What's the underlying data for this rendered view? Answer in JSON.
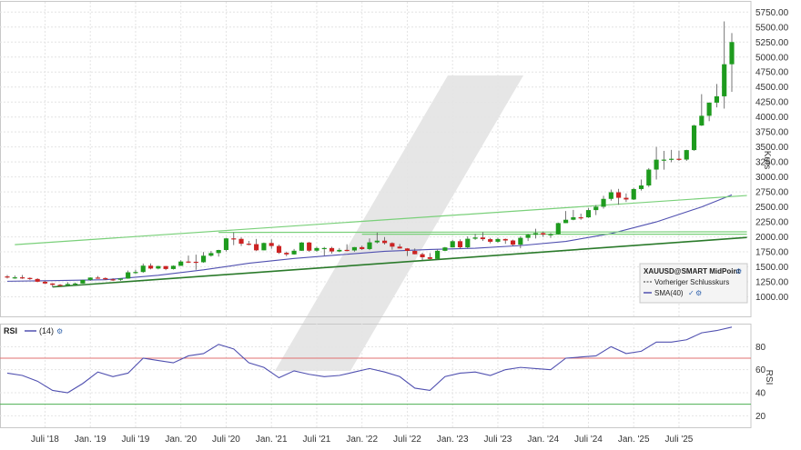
{
  "chart_data": [
    {
      "type": "candlestick",
      "panel": "price",
      "ylabel": "Kurs",
      "ylim": [
        750,
        5800
      ],
      "yticks": [
        1000,
        1250,
        1500,
        1750,
        2000,
        2250,
        2500,
        2750,
        3000,
        3250,
        3500,
        3750,
        4000,
        4250,
        4500,
        4750,
        5000,
        5250,
        5500,
        5750
      ],
      "ytick_labels": [
        "1000.00",
        "1250.00",
        "1500.00",
        "1750.00",
        "2000.00",
        "2250.00",
        "2500.00",
        "2750.00",
        "3000.00",
        "3250.00",
        "3500.00",
        "3750.00",
        "4000.00",
        "4250.00",
        "4500.00",
        "4750.00",
        "5000.00",
        "5250.00",
        "5500.00",
        "5750.00"
      ],
      "xlim": [
        "2018-02",
        "2026-02"
      ],
      "xticks": [
        "2018-07",
        "2019-01",
        "2019-07",
        "2020-01",
        "2020-07",
        "2021-01",
        "2021-07",
        "2022-01",
        "2022-07",
        "2023-01",
        "2023-07",
        "2024-01",
        "2024-07",
        "2025-01",
        "2025-07"
      ],
      "xtick_labels": [
        "Juli '18",
        "Jan. '19",
        "Juli '19",
        "Jan. '20",
        "Juli '20",
        "Jan. '21",
        "Juli '21",
        "Jan. '22",
        "Juli '22",
        "Jan. '23",
        "Juli '23",
        "Jan. '24",
        "Juli '24",
        "Jan. '25",
        "Juli '25"
      ],
      "grid": true,
      "colors": {
        "up": "#1e9b1e",
        "down": "#cc2222",
        "sma": "#5050b0",
        "trend_dark": "#2a7a2a",
        "trend_light": "#7ad07a"
      },
      "legend": {
        "position": "bottom-right",
        "title": "XAUUSD@SMART MidPoint",
        "entries": [
          "Vorheriger Schlusskurs",
          "SMA(40)"
        ]
      },
      "candles": [
        {
          "t": "2018-02",
          "o": 1340,
          "h": 1365,
          "l": 1305,
          "c": 1322
        },
        {
          "t": "2018-03",
          "o": 1322,
          "h": 1355,
          "l": 1300,
          "c": 1325
        },
        {
          "t": "2018-04",
          "o": 1325,
          "h": 1365,
          "l": 1300,
          "c": 1315
        },
        {
          "t": "2018-05",
          "o": 1315,
          "h": 1325,
          "l": 1282,
          "c": 1298
        },
        {
          "t": "2018-06",
          "o": 1298,
          "h": 1310,
          "l": 1245,
          "c": 1252
        },
        {
          "t": "2018-07",
          "o": 1252,
          "h": 1268,
          "l": 1212,
          "c": 1223
        },
        {
          "t": "2018-08",
          "o": 1223,
          "h": 1228,
          "l": 1160,
          "c": 1200
        },
        {
          "t": "2018-09",
          "o": 1200,
          "h": 1212,
          "l": 1180,
          "c": 1192
        },
        {
          "t": "2018-10",
          "o": 1192,
          "h": 1245,
          "l": 1182,
          "c": 1214
        },
        {
          "t": "2018-11",
          "o": 1214,
          "h": 1238,
          "l": 1196,
          "c": 1222
        },
        {
          "t": "2018-12",
          "o": 1222,
          "h": 1285,
          "l": 1221,
          "c": 1282
        },
        {
          "t": "2019-01",
          "o": 1282,
          "h": 1326,
          "l": 1266,
          "c": 1321
        },
        {
          "t": "2019-02",
          "o": 1321,
          "h": 1347,
          "l": 1302,
          "c": 1313
        },
        {
          "t": "2019-03",
          "o": 1313,
          "h": 1324,
          "l": 1281,
          "c": 1292
        },
        {
          "t": "2019-04",
          "o": 1292,
          "h": 1310,
          "l": 1266,
          "c": 1284
        },
        {
          "t": "2019-05",
          "o": 1284,
          "h": 1306,
          "l": 1267,
          "c": 1305
        },
        {
          "t": "2019-06",
          "o": 1305,
          "h": 1439,
          "l": 1301,
          "c": 1409
        },
        {
          "t": "2019-07",
          "o": 1409,
          "h": 1453,
          "l": 1382,
          "c": 1414
        },
        {
          "t": "2019-08",
          "o": 1414,
          "h": 1555,
          "l": 1400,
          "c": 1520
        },
        {
          "t": "2019-09",
          "o": 1520,
          "h": 1557,
          "l": 1459,
          "c": 1472
        },
        {
          "t": "2019-10",
          "o": 1472,
          "h": 1518,
          "l": 1459,
          "c": 1513
        },
        {
          "t": "2019-11",
          "o": 1513,
          "h": 1516,
          "l": 1445,
          "c": 1464
        },
        {
          "t": "2019-12",
          "o": 1464,
          "h": 1525,
          "l": 1455,
          "c": 1517
        },
        {
          "t": "2020-01",
          "o": 1517,
          "h": 1611,
          "l": 1517,
          "c": 1589
        },
        {
          "t": "2020-02",
          "o": 1589,
          "h": 1689,
          "l": 1563,
          "c": 1585
        },
        {
          "t": "2020-03",
          "o": 1585,
          "h": 1704,
          "l": 1451,
          "c": 1577
        },
        {
          "t": "2020-04",
          "o": 1577,
          "h": 1747,
          "l": 1567,
          "c": 1686
        },
        {
          "t": "2020-05",
          "o": 1686,
          "h": 1765,
          "l": 1670,
          "c": 1730
        },
        {
          "t": "2020-06",
          "o": 1730,
          "h": 1785,
          "l": 1671,
          "c": 1781
        },
        {
          "t": "2020-07",
          "o": 1781,
          "h": 1984,
          "l": 1757,
          "c": 1975
        },
        {
          "t": "2020-08",
          "o": 1975,
          "h": 2075,
          "l": 1863,
          "c": 1967
        },
        {
          "t": "2020-09",
          "o": 1967,
          "h": 1992,
          "l": 1848,
          "c": 1886
        },
        {
          "t": "2020-10",
          "o": 1886,
          "h": 1933,
          "l": 1859,
          "c": 1879
        },
        {
          "t": "2020-11",
          "o": 1879,
          "h": 1966,
          "l": 1764,
          "c": 1776
        },
        {
          "t": "2020-12",
          "o": 1776,
          "h": 1906,
          "l": 1775,
          "c": 1898
        },
        {
          "t": "2021-01",
          "o": 1898,
          "h": 1959,
          "l": 1802,
          "c": 1848
        },
        {
          "t": "2021-02",
          "o": 1848,
          "h": 1871,
          "l": 1717,
          "c": 1734
        },
        {
          "t": "2021-03",
          "o": 1734,
          "h": 1755,
          "l": 1677,
          "c": 1708
        },
        {
          "t": "2021-04",
          "o": 1708,
          "h": 1798,
          "l": 1704,
          "c": 1769
        },
        {
          "t": "2021-05",
          "o": 1769,
          "h": 1913,
          "l": 1765,
          "c": 1906
        },
        {
          "t": "2021-06",
          "o": 1906,
          "h": 1916,
          "l": 1750,
          "c": 1770
        },
        {
          "t": "2021-07",
          "o": 1770,
          "h": 1834,
          "l": 1751,
          "c": 1814
        },
        {
          "t": "2021-08",
          "o": 1814,
          "h": 1832,
          "l": 1688,
          "c": 1814
        },
        {
          "t": "2021-09",
          "o": 1814,
          "h": 1834,
          "l": 1721,
          "c": 1757
        },
        {
          "t": "2021-10",
          "o": 1757,
          "h": 1814,
          "l": 1746,
          "c": 1783
        },
        {
          "t": "2021-11",
          "o": 1783,
          "h": 1877,
          "l": 1759,
          "c": 1774
        },
        {
          "t": "2021-12",
          "o": 1774,
          "h": 1831,
          "l": 1753,
          "c": 1829
        },
        {
          "t": "2022-01",
          "o": 1829,
          "h": 1853,
          "l": 1781,
          "c": 1797
        },
        {
          "t": "2022-02",
          "o": 1797,
          "h": 1974,
          "l": 1780,
          "c": 1909
        },
        {
          "t": "2022-03",
          "o": 1909,
          "h": 2070,
          "l": 1890,
          "c": 1937
        },
        {
          "t": "2022-04",
          "o": 1937,
          "h": 1998,
          "l": 1872,
          "c": 1897
        },
        {
          "t": "2022-05",
          "o": 1897,
          "h": 1910,
          "l": 1787,
          "c": 1837
        },
        {
          "t": "2022-06",
          "o": 1837,
          "h": 1880,
          "l": 1805,
          "c": 1807
        },
        {
          "t": "2022-07",
          "o": 1807,
          "h": 1814,
          "l": 1681,
          "c": 1766
        },
        {
          "t": "2022-08",
          "o": 1766,
          "h": 1807,
          "l": 1709,
          "c": 1711
        },
        {
          "t": "2022-09",
          "o": 1711,
          "h": 1735,
          "l": 1615,
          "c": 1660
        },
        {
          "t": "2022-10",
          "o": 1660,
          "h": 1730,
          "l": 1617,
          "c": 1633
        },
        {
          "t": "2022-11",
          "o": 1633,
          "h": 1786,
          "l": 1616,
          "c": 1768
        },
        {
          "t": "2022-12",
          "o": 1768,
          "h": 1833,
          "l": 1765,
          "c": 1824
        },
        {
          "t": "2023-01",
          "o": 1824,
          "h": 1949,
          "l": 1823,
          "c": 1928
        },
        {
          "t": "2023-02",
          "o": 1928,
          "h": 1960,
          "l": 1805,
          "c": 1826
        },
        {
          "t": "2023-03",
          "o": 1826,
          "h": 2009,
          "l": 1810,
          "c": 1969
        },
        {
          "t": "2023-04",
          "o": 1969,
          "h": 2048,
          "l": 1950,
          "c": 1990
        },
        {
          "t": "2023-05",
          "o": 1990,
          "h": 2079,
          "l": 1932,
          "c": 1962
        },
        {
          "t": "2023-06",
          "o": 1962,
          "h": 1983,
          "l": 1893,
          "c": 1919
        },
        {
          "t": "2023-07",
          "o": 1919,
          "h": 1987,
          "l": 1903,
          "c": 1965
        },
        {
          "t": "2023-08",
          "o": 1965,
          "h": 1972,
          "l": 1884,
          "c": 1940
        },
        {
          "t": "2023-09",
          "o": 1940,
          "h": 1953,
          "l": 1846,
          "c": 1870
        },
        {
          "t": "2023-10",
          "o": 1870,
          "h": 2009,
          "l": 1810,
          "c": 1984
        },
        {
          "t": "2023-11",
          "o": 1984,
          "h": 2052,
          "l": 1931,
          "c": 2036
        },
        {
          "t": "2023-12",
          "o": 2036,
          "h": 2135,
          "l": 1973,
          "c": 2063
        },
        {
          "t": "2024-01",
          "o": 2063,
          "h": 2088,
          "l": 2001,
          "c": 2039
        },
        {
          "t": "2024-02",
          "o": 2039,
          "h": 2065,
          "l": 1984,
          "c": 2044
        },
        {
          "t": "2024-03",
          "o": 2044,
          "h": 2236,
          "l": 2039,
          "c": 2230
        },
        {
          "t": "2024-04",
          "o": 2230,
          "h": 2432,
          "l": 2229,
          "c": 2286
        },
        {
          "t": "2024-05",
          "o": 2286,
          "h": 2450,
          "l": 2277,
          "c": 2327
        },
        {
          "t": "2024-06",
          "o": 2327,
          "h": 2388,
          "l": 2286,
          "c": 2326
        },
        {
          "t": "2024-07",
          "o": 2326,
          "h": 2484,
          "l": 2318,
          "c": 2447
        },
        {
          "t": "2024-08",
          "o": 2447,
          "h": 2531,
          "l": 2364,
          "c": 2503
        },
        {
          "t": "2024-09",
          "o": 2503,
          "h": 2685,
          "l": 2471,
          "c": 2634
        },
        {
          "t": "2024-10",
          "o": 2634,
          "h": 2790,
          "l": 2604,
          "c": 2744
        },
        {
          "t": "2024-11",
          "o": 2744,
          "h": 2801,
          "l": 2536,
          "c": 2652
        },
        {
          "t": "2024-12",
          "o": 2652,
          "h": 2726,
          "l": 2583,
          "c": 2624
        },
        {
          "t": "2025-01",
          "o": 2624,
          "h": 2817,
          "l": 2615,
          "c": 2798
        },
        {
          "t": "2025-02",
          "o": 2798,
          "h": 2956,
          "l": 2772,
          "c": 2858
        },
        {
          "t": "2025-03",
          "o": 2858,
          "h": 3148,
          "l": 2833,
          "c": 3123
        },
        {
          "t": "2025-04",
          "o": 3123,
          "h": 3500,
          "l": 2957,
          "c": 3288
        },
        {
          "t": "2025-05",
          "o": 3288,
          "h": 3435,
          "l": 3121,
          "c": 3289
        },
        {
          "t": "2025-06",
          "o": 3289,
          "h": 3452,
          "l": 3245,
          "c": 3303
        },
        {
          "t": "2025-07",
          "o": 3303,
          "h": 3439,
          "l": 3268,
          "c": 3290
        },
        {
          "t": "2025-08",
          "o": 3290,
          "h": 3454,
          "l": 3268,
          "c": 3448
        },
        {
          "t": "2025-09",
          "o": 3448,
          "h": 3870,
          "l": 3436,
          "c": 3858
        },
        {
          "t": "2025-10",
          "o": 3858,
          "h": 4381,
          "l": 3850,
          "c": 4020
        },
        {
          "t": "2025-11",
          "o": 4020,
          "h": 4245,
          "l": 3930,
          "c": 4239
        },
        {
          "t": "2025-12",
          "o": 4239,
          "h": 4550,
          "l": 4160,
          "c": 4345
        },
        {
          "t": "2026-01",
          "o": 4345,
          "h": 5595,
          "l": 4140,
          "c": 4880
        },
        {
          "t": "2026-02",
          "o": 4880,
          "h": 5400,
          "l": 4420,
          "c": 5250
        }
      ],
      "sma40": [
        {
          "t": "2018-02",
          "v": 1260
        },
        {
          "t": "2018-08",
          "v": 1270
        },
        {
          "t": "2019-03",
          "v": 1285
        },
        {
          "t": "2019-10",
          "v": 1360
        },
        {
          "t": "2020-04",
          "v": 1450
        },
        {
          "t": "2020-10",
          "v": 1560
        },
        {
          "t": "2021-04",
          "v": 1640
        },
        {
          "t": "2021-10",
          "v": 1700
        },
        {
          "t": "2022-04",
          "v": 1760
        },
        {
          "t": "2022-10",
          "v": 1790
        },
        {
          "t": "2023-04",
          "v": 1810
        },
        {
          "t": "2023-10",
          "v": 1855
        },
        {
          "t": "2024-04",
          "v": 1925
        },
        {
          "t": "2024-10",
          "v": 2055
        },
        {
          "t": "2025-04",
          "v": 2250
        },
        {
          "t": "2025-10",
          "v": 2500
        },
        {
          "t": "2026-02",
          "v": 2700
        }
      ],
      "trendlines": [
        {
          "style": "dark",
          "from": {
            "t": "2018-08",
            "v": 1165
          },
          "to": {
            "t": "2026-04",
            "v": 1990
          }
        },
        {
          "style": "light",
          "from": {
            "t": "2018-03",
            "v": 1870
          },
          "to": {
            "t": "2026-04",
            "v": 2690
          }
        },
        {
          "style": "light",
          "from": {
            "t": "2020-06",
            "v": 2075
          },
          "to": {
            "t": "2026-04",
            "v": 2085
          }
        },
        {
          "style": "light",
          "from": {
            "t": "2022-01",
            "v": 2045
          },
          "to": {
            "t": "2026-04",
            "v": 2045
          }
        }
      ]
    },
    {
      "type": "line",
      "panel": "indicator",
      "ylabel": "RSI",
      "ylim": [
        10,
        100
      ],
      "yticks": [
        20,
        40,
        60,
        80
      ],
      "ytick_labels": [
        "20",
        "40",
        "60",
        "80"
      ],
      "legend": {
        "position": "top-left",
        "title": "RSI",
        "entries": [
          "(14)"
        ]
      },
      "reference_lines": [
        {
          "v": 70,
          "color": "#e07070"
        },
        {
          "v": 30,
          "color": "#4caf50"
        }
      ],
      "series": [
        {
          "name": "(14)",
          "color": "#5050b0",
          "x": [
            "2018-02",
            "2018-04",
            "2018-06",
            "2018-08",
            "2018-10",
            "2018-12",
            "2019-02",
            "2019-04",
            "2019-06",
            "2019-08",
            "2019-10",
            "2019-12",
            "2020-02",
            "2020-04",
            "2020-06",
            "2020-08",
            "2020-10",
            "2020-12",
            "2021-02",
            "2021-04",
            "2021-06",
            "2021-08",
            "2021-10",
            "2021-12",
            "2022-02",
            "2022-04",
            "2022-06",
            "2022-08",
            "2022-10",
            "2022-12",
            "2023-02",
            "2023-04",
            "2023-06",
            "2023-08",
            "2023-10",
            "2023-12",
            "2024-02",
            "2024-04",
            "2024-06",
            "2024-08",
            "2024-10",
            "2024-12",
            "2025-02",
            "2025-04",
            "2025-06",
            "2025-08",
            "2025-10",
            "2025-12",
            "2026-02"
          ],
          "y": [
            57,
            55,
            50,
            42,
            40,
            48,
            58,
            54,
            57,
            70,
            68,
            66,
            72,
            74,
            82,
            78,
            66,
            62,
            53,
            59,
            56,
            54,
            55,
            58,
            61,
            58,
            54,
            44,
            42,
            54,
            57,
            58,
            55,
            60,
            62,
            61,
            60,
            70,
            71,
            72,
            80,
            74,
            76,
            84,
            84,
            86,
            92,
            94,
            97
          ]
        }
      ]
    }
  ]
}
